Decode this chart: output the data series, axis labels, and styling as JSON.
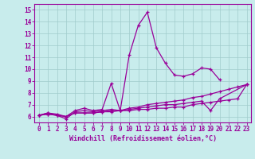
{
  "xlabel": "Windchill (Refroidissement éolien,°C)",
  "background_color": "#c8ecec",
  "line_color": "#990099",
  "grid_color": "#a0cccc",
  "xlim": [
    -0.5,
    23.5
  ],
  "ylim": [
    5.5,
    15.5
  ],
  "xticks": [
    0,
    1,
    2,
    3,
    4,
    5,
    6,
    7,
    8,
    9,
    10,
    11,
    12,
    13,
    14,
    15,
    16,
    17,
    18,
    19,
    20,
    21,
    22,
    23
  ],
  "yticks": [
    6,
    7,
    8,
    9,
    10,
    11,
    12,
    13,
    14,
    15
  ],
  "series": [
    [
      6.1,
      6.3,
      6.2,
      6.0,
      6.5,
      6.7,
      6.5,
      6.6,
      8.8,
      6.5,
      11.2,
      13.7,
      14.8,
      11.8,
      10.5,
      9.5,
      9.4,
      9.6,
      10.1,
      10.0,
      9.1,
      null,
      null,
      null
    ],
    [
      6.1,
      6.3,
      6.1,
      5.8,
      6.4,
      6.5,
      6.4,
      6.5,
      6.6,
      6.5,
      6.7,
      6.8,
      7.0,
      7.1,
      7.2,
      7.3,
      7.4,
      7.6,
      7.7,
      7.9,
      8.1,
      8.3,
      8.5,
      8.7
    ],
    [
      6.1,
      6.2,
      6.1,
      6.0,
      6.3,
      6.3,
      6.3,
      6.4,
      6.4,
      6.5,
      6.5,
      6.6,
      6.6,
      6.7,
      6.7,
      6.8,
      6.8,
      7.0,
      7.1,
      7.2,
      7.3,
      7.4,
      7.5,
      8.7
    ],
    [
      6.1,
      6.2,
      6.1,
      6.0,
      6.3,
      6.3,
      6.3,
      6.4,
      6.5,
      6.5,
      6.6,
      6.7,
      6.8,
      6.9,
      7.0,
      7.0,
      7.1,
      7.2,
      7.3,
      6.5,
      7.5,
      null,
      null,
      8.7
    ]
  ]
}
